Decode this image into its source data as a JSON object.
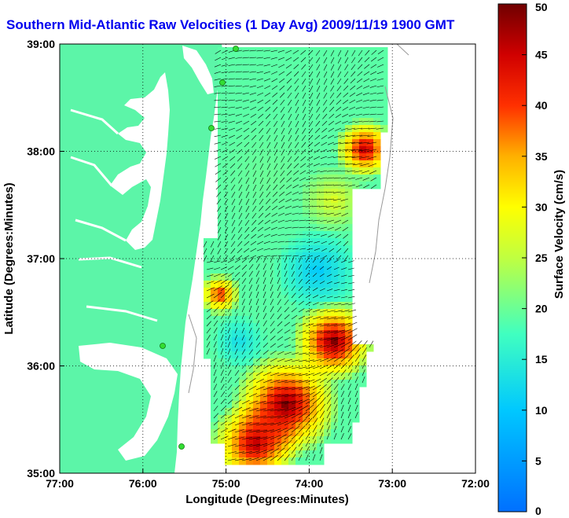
{
  "title": "Southern Mid-Atlantic Raw Velocities (1 Day Avg) 2009/11/19 1900 GMT",
  "x_axis": {
    "label": "Longitude (Degrees:Minutes)",
    "ticks": [
      "77:00",
      "76:00",
      "75:00",
      "74:00",
      "73:00",
      "72:00"
    ]
  },
  "y_axis": {
    "label": "Latitude (Degrees:Minutes)",
    "ticks": [
      "39:00",
      "38:00",
      "37:00",
      "36:00",
      "35:00"
    ]
  },
  "colorbar": {
    "label": "Surface Velocity (cm/s)",
    "ticks": [
      "0",
      "5",
      "10",
      "15",
      "20",
      "25",
      "30",
      "35",
      "40",
      "45",
      "50"
    ],
    "min": 0,
    "max": 50
  },
  "colors": {
    "land": "#5cf5a8",
    "ocean": "#ffffff",
    "title": "#0000ee",
    "stations": "#33dd33"
  },
  "stations_count": 5
}
